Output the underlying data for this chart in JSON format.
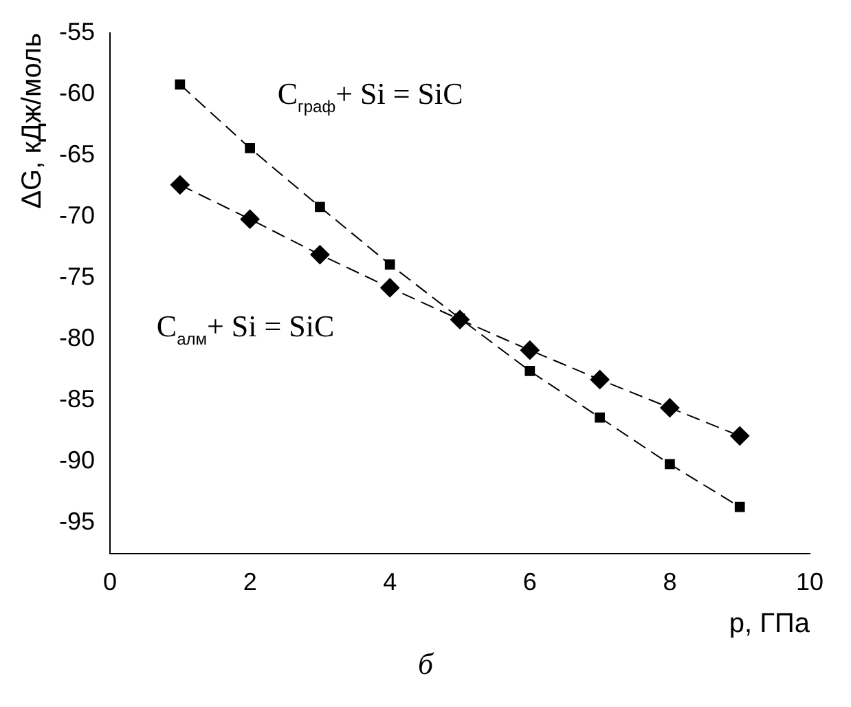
{
  "chart_data": {
    "type": "line",
    "xlabel": "p, ГПа",
    "ylabel": "ΔG, кДж/моль",
    "x": [
      1,
      2,
      3,
      4,
      5,
      6,
      7,
      8,
      9
    ],
    "series": [
      {
        "name": "C$_{граф}$+ Si = SiC",
        "color": "#000000",
        "marker": "square",
        "values": [
          -59.2,
          -64.4,
          -69.2,
          -73.9,
          -78.3,
          -82.6,
          -86.4,
          -90.2,
          -93.7
        ]
      },
      {
        "name": "C$_{алм}$+ Si = SiC",
        "color": "#000000",
        "marker": "diamond",
        "values": [
          -67.4,
          -70.2,
          -73.1,
          -75.8,
          -78.4,
          -80.9,
          -83.3,
          -85.6,
          -87.9
        ]
      }
    ],
    "xlim": [
      0,
      10
    ],
    "xticks": [
      0,
      2,
      4,
      6,
      8,
      10
    ],
    "ylim": [
      -97.5,
      -55
    ],
    "yticks": [
      -55,
      -60,
      -65,
      -70,
      -75,
      -80,
      -85,
      -90,
      -95
    ],
    "grid": false,
    "legend": false,
    "line_style": "dashed",
    "annotations": [
      "б"
    ]
  }
}
